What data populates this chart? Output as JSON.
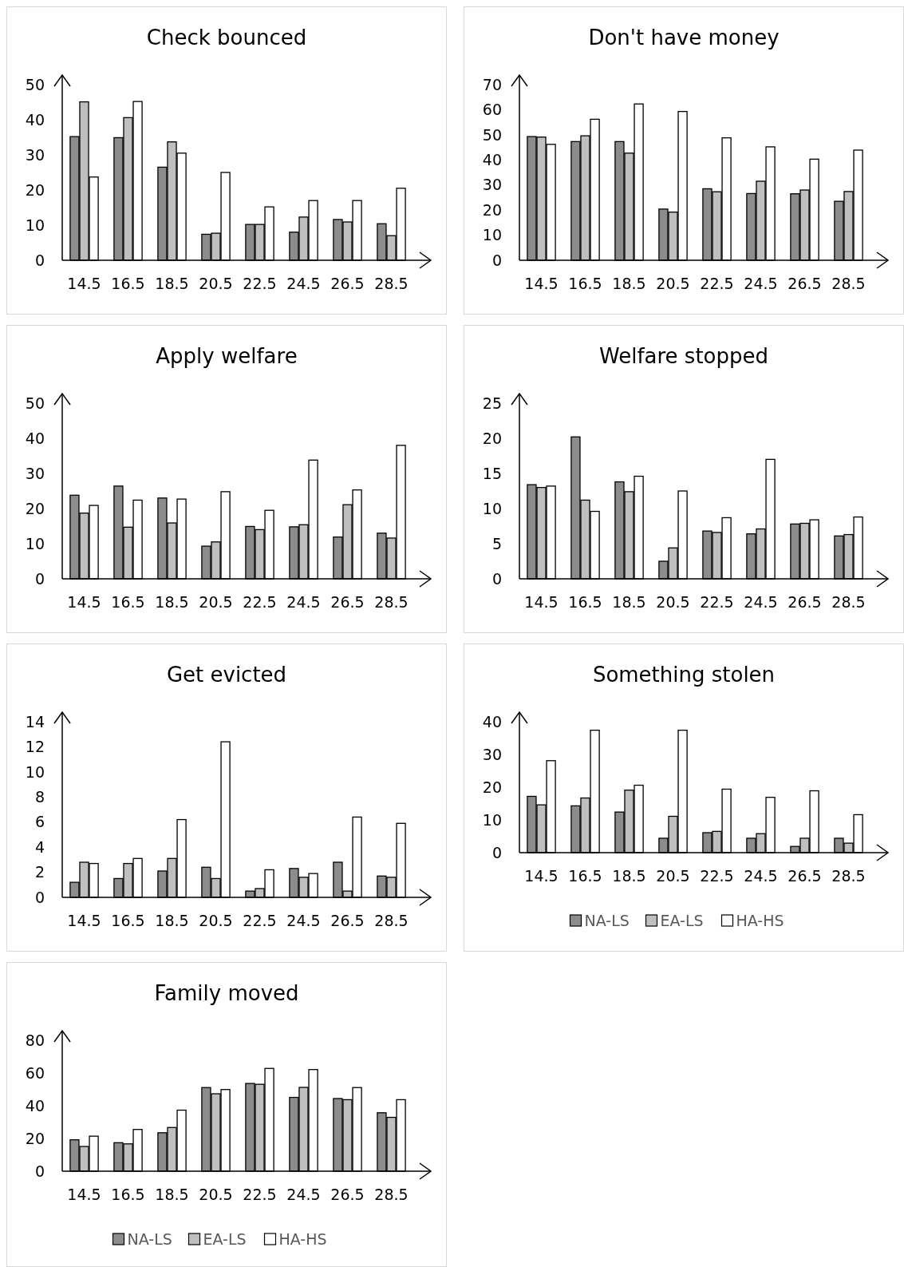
{
  "chart_data": [
    {
      "type": "bar",
      "title": "Check bounced",
      "categories": [
        "14.5",
        "16.5",
        "18.5",
        "20.5",
        "22.5",
        "24.5",
        "26.5",
        "28.5"
      ],
      "series": [
        {
          "color": "#8c8c8c",
          "values": [
            35.2,
            34.9,
            26.5,
            7.4,
            10.2,
            8.0,
            11.6,
            10.4
          ]
        },
        {
          "color": "#bfbfbf",
          "values": [
            45.1,
            40.6,
            33.7,
            7.7,
            10.2,
            12.3,
            10.9,
            7.0
          ]
        },
        {
          "color": "#ffffff",
          "values": [
            23.7,
            45.2,
            30.5,
            25.0,
            15.2,
            17.0,
            17.0,
            20.5
          ]
        }
      ],
      "ylim": [
        0,
        50
      ],
      "yticks": [
        0,
        10,
        20,
        30,
        40,
        50
      ],
      "grid": false,
      "legend": false
    },
    {
      "type": "bar",
      "title": "Don't have money",
      "categories": [
        "14.5",
        "16.5",
        "18.5",
        "20.5",
        "22.5",
        "24.5",
        "26.5",
        "28.5"
      ],
      "series": [
        {
          "color": "#8c8c8c",
          "values": [
            49.3,
            47.3,
            47.3,
            20.4,
            28.5,
            26.6,
            26.5,
            23.5
          ]
        },
        {
          "color": "#bfbfbf",
          "values": [
            49.1,
            49.6,
            42.7,
            19.2,
            27.3,
            31.5,
            28.0,
            27.4
          ]
        },
        {
          "color": "#ffffff",
          "values": [
            46.2,
            56.2,
            62.3,
            59.3,
            48.8,
            45.2,
            40.3,
            43.9
          ]
        }
      ],
      "ylim": [
        0,
        70
      ],
      "yticks": [
        0,
        10,
        20,
        30,
        40,
        50,
        60,
        70
      ],
      "grid": false,
      "legend": false
    },
    {
      "type": "bar",
      "title": "Apply welfare",
      "categories": [
        "14.5",
        "16.5",
        "18.5",
        "20.5",
        "22.5",
        "24.5",
        "26.5",
        "28.5"
      ],
      "series": [
        {
          "color": "#8c8c8c",
          "values": [
            23.8,
            26.4,
            23.0,
            9.3,
            14.9,
            14.8,
            11.9,
            13.0
          ]
        },
        {
          "color": "#bfbfbf",
          "values": [
            18.7,
            14.7,
            15.9,
            10.5,
            14.0,
            15.4,
            21.1,
            11.6
          ]
        },
        {
          "color": "#ffffff",
          "values": [
            20.9,
            22.4,
            22.7,
            24.8,
            19.5,
            33.8,
            25.3,
            38.0
          ]
        }
      ],
      "ylim": [
        0,
        50
      ],
      "yticks": [
        0,
        10,
        20,
        30,
        40,
        50
      ],
      "grid": false,
      "legend": false
    },
    {
      "type": "bar",
      "title": "Welfare stopped",
      "categories": [
        "14.5",
        "16.5",
        "18.5",
        "20.5",
        "22.5",
        "24.5",
        "26.5",
        "28.5"
      ],
      "series": [
        {
          "color": "#8c8c8c",
          "values": [
            13.4,
            20.2,
            13.8,
            2.5,
            6.8,
            6.4,
            7.8,
            6.1
          ]
        },
        {
          "color": "#bfbfbf",
          "values": [
            13.0,
            11.2,
            12.4,
            4.4,
            6.6,
            7.1,
            7.9,
            6.3
          ]
        },
        {
          "color": "#ffffff",
          "values": [
            13.2,
            9.6,
            14.6,
            12.5,
            8.7,
            17.0,
            8.4,
            8.8
          ]
        }
      ],
      "ylim": [
        0,
        25
      ],
      "yticks": [
        0,
        5,
        10,
        15,
        20,
        25
      ],
      "grid": false,
      "legend": false
    },
    {
      "type": "bar",
      "title": "Get evicted",
      "categories": [
        "14.5",
        "16.5",
        "18.5",
        "20.5",
        "22.5",
        "24.5",
        "26.5",
        "28.5"
      ],
      "series": [
        {
          "color": "#8c8c8c",
          "values": [
            1.2,
            1.5,
            2.1,
            2.4,
            0.5,
            2.3,
            2.8,
            1.7
          ]
        },
        {
          "color": "#bfbfbf",
          "values": [
            2.8,
            2.7,
            3.1,
            1.5,
            0.7,
            1.6,
            0.5,
            1.6
          ]
        },
        {
          "color": "#ffffff",
          "values": [
            2.7,
            3.1,
            6.2,
            12.4,
            2.2,
            1.9,
            6.4,
            5.9
          ]
        }
      ],
      "ylim": [
        0,
        14
      ],
      "yticks": [
        0,
        2,
        4,
        6,
        8,
        10,
        12,
        14
      ],
      "grid": false,
      "legend": false
    },
    {
      "type": "bar",
      "title": "Something stolen",
      "categories": [
        "14.5",
        "16.5",
        "18.5",
        "20.5",
        "22.5",
        "24.5",
        "26.5",
        "28.5"
      ],
      "series": [
        {
          "name": "NA-LS",
          "color": "#8c8c8c",
          "values": [
            17.2,
            14.3,
            12.4,
            4.4,
            6.1,
            4.4,
            1.9,
            4.4
          ]
        },
        {
          "name": "EA-LS",
          "color": "#bfbfbf",
          "values": [
            14.6,
            16.7,
            19.1,
            11.1,
            6.5,
            5.8,
            4.4,
            2.9
          ]
        },
        {
          "name": "HA-HS",
          "color": "#ffffff",
          "values": [
            28.1,
            37.4,
            20.6,
            37.4,
            19.4,
            16.9,
            18.9,
            11.6
          ]
        }
      ],
      "ylim": [
        0,
        40
      ],
      "yticks": [
        0,
        10,
        20,
        30,
        40
      ],
      "grid": false,
      "legend": "bottom"
    },
    {
      "type": "bar",
      "title": "Family moved",
      "categories": [
        "14.5",
        "16.5",
        "18.5",
        "20.5",
        "22.5",
        "24.5",
        "26.5",
        "28.5"
      ],
      "series": [
        {
          "name": "NA-LS",
          "color": "#8c8c8c",
          "values": [
            19.2,
            17.4,
            23.5,
            51.1,
            53.6,
            45.1,
            44.4,
            35.7
          ]
        },
        {
          "name": "EA-LS",
          "color": "#bfbfbf",
          "values": [
            15.1,
            16.7,
            26.7,
            47.3,
            53.1,
            51.2,
            43.7,
            32.9
          ]
        },
        {
          "name": "HA-HS",
          "color": "#ffffff",
          "values": [
            21.4,
            25.5,
            37.3,
            49.9,
            62.8,
            62.1,
            51.1,
            43.7
          ]
        }
      ],
      "ylim": [
        0,
        80
      ],
      "yticks": [
        0,
        20,
        40,
        60,
        80
      ],
      "grid": false,
      "legend": "bottom"
    }
  ]
}
